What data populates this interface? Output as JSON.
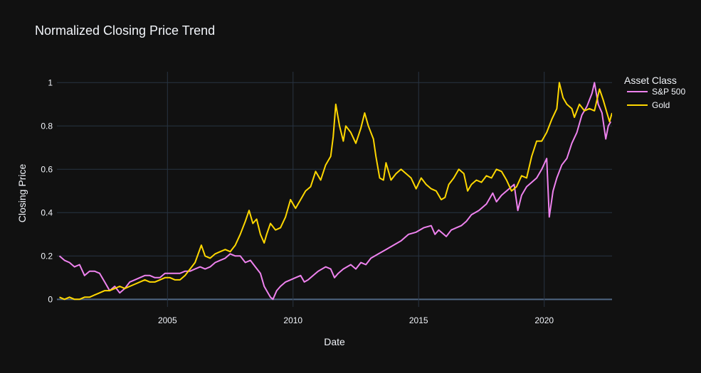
{
  "chart_data": {
    "type": "line",
    "title": "Normalized Closing Price Trend",
    "xlabel": "Date",
    "ylabel": "Closing Price",
    "xlim": [
      2000.6,
      2022.7
    ],
    "ylim": [
      -0.035,
      1.05
    ],
    "x_ticks": [
      2005,
      2010,
      2015,
      2020
    ],
    "x_tick_labels": [
      "2005",
      "2010",
      "2015",
      "2020"
    ],
    "y_ticks": [
      0,
      0.2,
      0.4,
      0.6,
      0.8,
      1
    ],
    "y_tick_labels": [
      "0",
      "0.2",
      "0.4",
      "0.6",
      "0.8",
      "1"
    ],
    "grid": true,
    "legend": {
      "title": "Asset Class",
      "position": "right-top"
    },
    "series": [
      {
        "name": "S&P 500",
        "color": "#ee82ee",
        "points": [
          [
            2000.7,
            0.2
          ],
          [
            2000.9,
            0.18
          ],
          [
            2001.1,
            0.17
          ],
          [
            2001.3,
            0.15
          ],
          [
            2001.5,
            0.16
          ],
          [
            2001.7,
            0.11
          ],
          [
            2001.9,
            0.13
          ],
          [
            2002.1,
            0.13
          ],
          [
            2002.3,
            0.12
          ],
          [
            2002.5,
            0.08
          ],
          [
            2002.7,
            0.04
          ],
          [
            2002.9,
            0.06
          ],
          [
            2003.1,
            0.03
          ],
          [
            2003.3,
            0.05
          ],
          [
            2003.5,
            0.08
          ],
          [
            2003.7,
            0.09
          ],
          [
            2003.9,
            0.1
          ],
          [
            2004.1,
            0.11
          ],
          [
            2004.3,
            0.11
          ],
          [
            2004.5,
            0.1
          ],
          [
            2004.7,
            0.1
          ],
          [
            2004.9,
            0.12
          ],
          [
            2005.1,
            0.12
          ],
          [
            2005.3,
            0.12
          ],
          [
            2005.5,
            0.12
          ],
          [
            2005.7,
            0.13
          ],
          [
            2005.9,
            0.13
          ],
          [
            2006.1,
            0.14
          ],
          [
            2006.3,
            0.15
          ],
          [
            2006.5,
            0.14
          ],
          [
            2006.7,
            0.15
          ],
          [
            2006.9,
            0.17
          ],
          [
            2007.1,
            0.18
          ],
          [
            2007.3,
            0.19
          ],
          [
            2007.5,
            0.21
          ],
          [
            2007.7,
            0.2
          ],
          [
            2007.9,
            0.2
          ],
          [
            2008.1,
            0.17
          ],
          [
            2008.3,
            0.18
          ],
          [
            2008.5,
            0.15
          ],
          [
            2008.7,
            0.12
          ],
          [
            2008.85,
            0.06
          ],
          [
            2009.0,
            0.03
          ],
          [
            2009.1,
            0.01
          ],
          [
            2009.2,
            0.0
          ],
          [
            2009.35,
            0.04
          ],
          [
            2009.5,
            0.06
          ],
          [
            2009.7,
            0.08
          ],
          [
            2009.9,
            0.09
          ],
          [
            2010.1,
            0.1
          ],
          [
            2010.3,
            0.11
          ],
          [
            2010.45,
            0.08
          ],
          [
            2010.6,
            0.09
          ],
          [
            2010.8,
            0.11
          ],
          [
            2011.0,
            0.13
          ],
          [
            2011.3,
            0.15
          ],
          [
            2011.5,
            0.14
          ],
          [
            2011.65,
            0.1
          ],
          [
            2011.8,
            0.12
          ],
          [
            2012.0,
            0.14
          ],
          [
            2012.3,
            0.16
          ],
          [
            2012.5,
            0.14
          ],
          [
            2012.7,
            0.17
          ],
          [
            2012.9,
            0.16
          ],
          [
            2013.1,
            0.19
          ],
          [
            2013.4,
            0.21
          ],
          [
            2013.7,
            0.23
          ],
          [
            2014.0,
            0.25
          ],
          [
            2014.3,
            0.27
          ],
          [
            2014.6,
            0.3
          ],
          [
            2014.9,
            0.31
          ],
          [
            2015.2,
            0.33
          ],
          [
            2015.5,
            0.34
          ],
          [
            2015.65,
            0.3
          ],
          [
            2015.8,
            0.32
          ],
          [
            2016.0,
            0.3
          ],
          [
            2016.1,
            0.29
          ],
          [
            2016.3,
            0.32
          ],
          [
            2016.5,
            0.33
          ],
          [
            2016.7,
            0.34
          ],
          [
            2016.9,
            0.36
          ],
          [
            2017.1,
            0.39
          ],
          [
            2017.4,
            0.41
          ],
          [
            2017.7,
            0.44
          ],
          [
            2017.95,
            0.49
          ],
          [
            2018.1,
            0.45
          ],
          [
            2018.3,
            0.48
          ],
          [
            2018.6,
            0.51
          ],
          [
            2018.8,
            0.53
          ],
          [
            2018.95,
            0.41
          ],
          [
            2019.1,
            0.48
          ],
          [
            2019.3,
            0.52
          ],
          [
            2019.5,
            0.54
          ],
          [
            2019.7,
            0.56
          ],
          [
            2019.9,
            0.6
          ],
          [
            2020.1,
            0.65
          ],
          [
            2020.2,
            0.38
          ],
          [
            2020.35,
            0.5
          ],
          [
            2020.5,
            0.56
          ],
          [
            2020.7,
            0.62
          ],
          [
            2020.9,
            0.65
          ],
          [
            2021.1,
            0.72
          ],
          [
            2021.3,
            0.77
          ],
          [
            2021.5,
            0.85
          ],
          [
            2021.7,
            0.89
          ],
          [
            2021.9,
            0.95
          ],
          [
            2022.0,
            1.0
          ],
          [
            2022.15,
            0.9
          ],
          [
            2022.3,
            0.86
          ],
          [
            2022.45,
            0.74
          ],
          [
            2022.55,
            0.8
          ],
          [
            2022.65,
            0.82
          ]
        ]
      },
      {
        "name": "Gold",
        "color": "#ffd700",
        "points": [
          [
            2000.7,
            0.01
          ],
          [
            2000.9,
            0.0
          ],
          [
            2001.1,
            0.01
          ],
          [
            2001.3,
            0.0
          ],
          [
            2001.5,
            0.0
          ],
          [
            2001.7,
            0.01
          ],
          [
            2001.9,
            0.01
          ],
          [
            2002.1,
            0.02
          ],
          [
            2002.3,
            0.03
          ],
          [
            2002.5,
            0.04
          ],
          [
            2002.7,
            0.04
          ],
          [
            2002.9,
            0.05
          ],
          [
            2003.1,
            0.06
          ],
          [
            2003.3,
            0.05
          ],
          [
            2003.5,
            0.06
          ],
          [
            2003.7,
            0.07
          ],
          [
            2003.9,
            0.08
          ],
          [
            2004.1,
            0.09
          ],
          [
            2004.3,
            0.08
          ],
          [
            2004.5,
            0.08
          ],
          [
            2004.7,
            0.09
          ],
          [
            2004.9,
            0.1
          ],
          [
            2005.1,
            0.1
          ],
          [
            2005.3,
            0.09
          ],
          [
            2005.5,
            0.09
          ],
          [
            2005.7,
            0.11
          ],
          [
            2005.9,
            0.14
          ],
          [
            2006.1,
            0.17
          ],
          [
            2006.35,
            0.25
          ],
          [
            2006.5,
            0.2
          ],
          [
            2006.7,
            0.19
          ],
          [
            2006.9,
            0.21
          ],
          [
            2007.1,
            0.22
          ],
          [
            2007.3,
            0.23
          ],
          [
            2007.5,
            0.22
          ],
          [
            2007.7,
            0.25
          ],
          [
            2007.9,
            0.3
          ],
          [
            2008.1,
            0.36
          ],
          [
            2008.25,
            0.41
          ],
          [
            2008.4,
            0.35
          ],
          [
            2008.55,
            0.37
          ],
          [
            2008.7,
            0.3
          ],
          [
            2008.85,
            0.26
          ],
          [
            2008.95,
            0.3
          ],
          [
            2009.1,
            0.35
          ],
          [
            2009.3,
            0.32
          ],
          [
            2009.5,
            0.33
          ],
          [
            2009.7,
            0.38
          ],
          [
            2009.9,
            0.46
          ],
          [
            2010.1,
            0.42
          ],
          [
            2010.3,
            0.46
          ],
          [
            2010.5,
            0.5
          ],
          [
            2010.7,
            0.52
          ],
          [
            2010.9,
            0.59
          ],
          [
            2011.1,
            0.55
          ],
          [
            2011.3,
            0.62
          ],
          [
            2011.5,
            0.66
          ],
          [
            2011.6,
            0.75
          ],
          [
            2011.7,
            0.9
          ],
          [
            2011.85,
            0.8
          ],
          [
            2012.0,
            0.73
          ],
          [
            2012.1,
            0.8
          ],
          [
            2012.3,
            0.77
          ],
          [
            2012.5,
            0.72
          ],
          [
            2012.7,
            0.79
          ],
          [
            2012.85,
            0.86
          ],
          [
            2013.0,
            0.8
          ],
          [
            2013.2,
            0.74
          ],
          [
            2013.3,
            0.66
          ],
          [
            2013.45,
            0.56
          ],
          [
            2013.6,
            0.55
          ],
          [
            2013.7,
            0.63
          ],
          [
            2013.9,
            0.55
          ],
          [
            2014.1,
            0.58
          ],
          [
            2014.3,
            0.6
          ],
          [
            2014.5,
            0.58
          ],
          [
            2014.7,
            0.56
          ],
          [
            2014.9,
            0.51
          ],
          [
            2015.1,
            0.56
          ],
          [
            2015.3,
            0.53
          ],
          [
            2015.5,
            0.51
          ],
          [
            2015.7,
            0.5
          ],
          [
            2015.9,
            0.46
          ],
          [
            2016.05,
            0.47
          ],
          [
            2016.2,
            0.53
          ],
          [
            2016.4,
            0.56
          ],
          [
            2016.6,
            0.6
          ],
          [
            2016.8,
            0.58
          ],
          [
            2016.95,
            0.5
          ],
          [
            2017.1,
            0.53
          ],
          [
            2017.3,
            0.55
          ],
          [
            2017.5,
            0.54
          ],
          [
            2017.7,
            0.57
          ],
          [
            2017.9,
            0.56
          ],
          [
            2018.1,
            0.6
          ],
          [
            2018.3,
            0.59
          ],
          [
            2018.5,
            0.55
          ],
          [
            2018.7,
            0.5
          ],
          [
            2018.9,
            0.52
          ],
          [
            2019.1,
            0.57
          ],
          [
            2019.3,
            0.56
          ],
          [
            2019.5,
            0.66
          ],
          [
            2019.7,
            0.73
          ],
          [
            2019.9,
            0.73
          ],
          [
            2020.1,
            0.77
          ],
          [
            2020.3,
            0.83
          ],
          [
            2020.5,
            0.88
          ],
          [
            2020.6,
            1.0
          ],
          [
            2020.75,
            0.93
          ],
          [
            2020.9,
            0.9
          ],
          [
            2021.1,
            0.88
          ],
          [
            2021.2,
            0.84
          ],
          [
            2021.4,
            0.9
          ],
          [
            2021.6,
            0.87
          ],
          [
            2021.8,
            0.88
          ],
          [
            2022.0,
            0.87
          ],
          [
            2022.2,
            0.97
          ],
          [
            2022.35,
            0.92
          ],
          [
            2022.5,
            0.86
          ],
          [
            2022.6,
            0.82
          ],
          [
            2022.7,
            0.86
          ]
        ]
      }
    ]
  }
}
